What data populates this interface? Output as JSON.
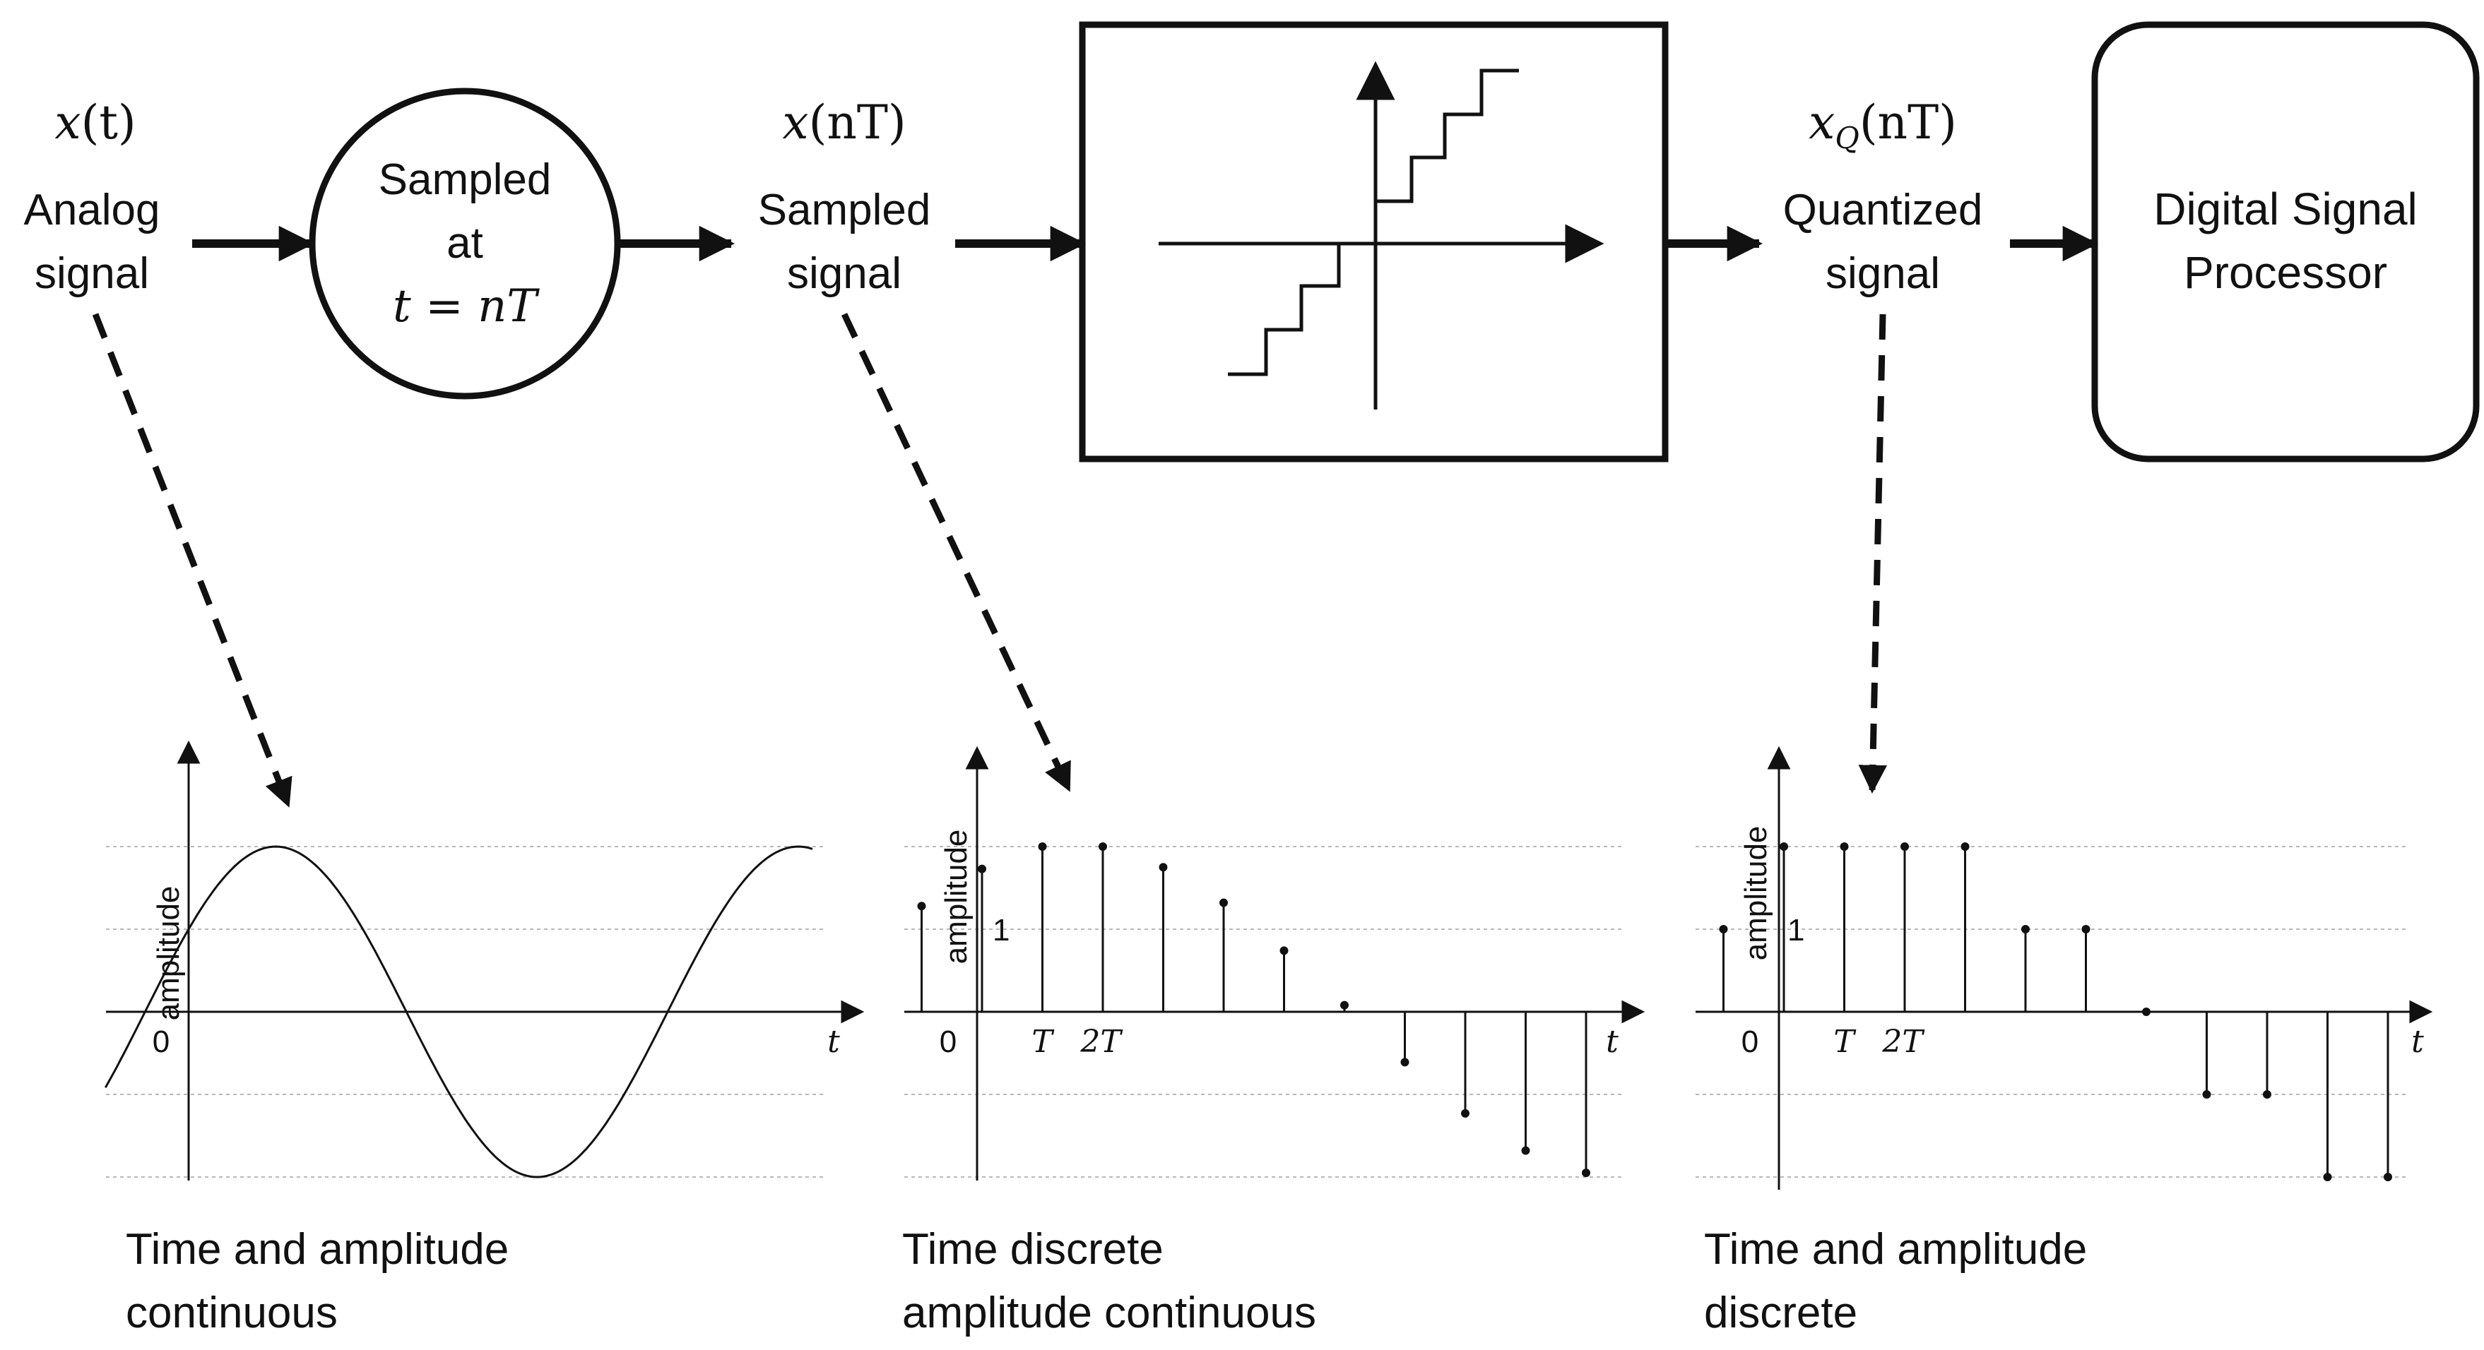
{
  "top": {
    "analog": {
      "symbol": "x",
      "arg": "(t)",
      "line1": "Analog",
      "line2": "signal"
    },
    "sampler": {
      "line1": "Sampled",
      "line2": "at",
      "eq": "t = nT"
    },
    "sampled": {
      "symbol": "x",
      "arg": "(nT)",
      "line1": "Sampled",
      "line2": "signal"
    },
    "quantized": {
      "symbol": "x",
      "subscript": "Q",
      "arg": "(nT)",
      "line1": "Quantized",
      "line2": "signal"
    },
    "dsp": {
      "line1": "Digital Signal",
      "line2": "Processor"
    }
  },
  "chart_data": [
    {
      "type": "line",
      "ylabel": "amplitude",
      "xlabel": "t",
      "tick_labels": {
        "origin": "0"
      },
      "caption": [
        "Time and amplitude",
        "continuous"
      ],
      "function": "2*sin(t + pi/6)",
      "x_range": [
        -1,
        7.5
      ],
      "ylim": [
        -2,
        2
      ],
      "grid_levels": [
        2,
        1,
        -1,
        -2
      ]
    },
    {
      "type": "stem",
      "ylabel": "amplitude",
      "xlabel": "t",
      "tick_labels": {
        "origin": "0",
        "T": "T",
        "2T": "2T",
        "y1": "1"
      },
      "caption": [
        "Time discrete",
        "amplitude continuous"
      ],
      "x": [
        -1,
        0,
        1,
        2,
        3,
        4,
        5,
        6,
        7,
        8,
        9,
        10
      ],
      "values": [
        1.28,
        1.73,
        2.0,
        2.0,
        1.75,
        1.32,
        0.74,
        0.08,
        -0.61,
        -1.23,
        -1.68,
        -1.95
      ],
      "ylim": [
        -2,
        2
      ],
      "grid_levels": [
        2,
        1,
        -1,
        -2
      ]
    },
    {
      "type": "stem",
      "ylabel": "amplitude",
      "xlabel": "t",
      "tick_labels": {
        "origin": "0",
        "T": "T",
        "2T": "2T",
        "y1": "1"
      },
      "caption": [
        "Time and amplitude",
        "discrete"
      ],
      "x": [
        -1,
        0,
        1,
        2,
        3,
        4,
        5,
        6,
        7,
        8,
        9,
        10
      ],
      "values": [
        1,
        2,
        2,
        2,
        2,
        1,
        1,
        0,
        -1,
        -1,
        -2,
        -2
      ],
      "ylim": [
        -2,
        2
      ],
      "grid_levels": [
        2,
        1,
        -1,
        -2
      ]
    }
  ]
}
